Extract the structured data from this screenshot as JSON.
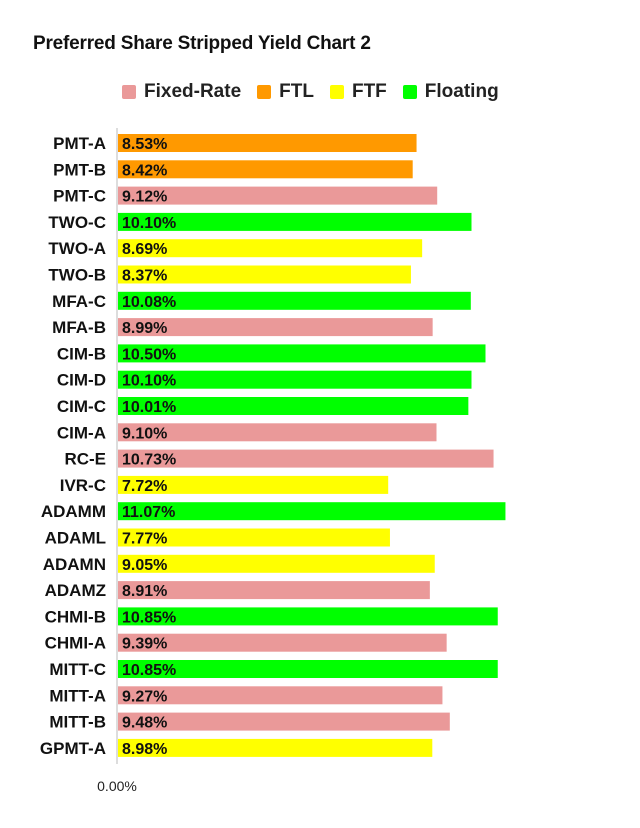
{
  "chart_data": {
    "type": "bar",
    "orientation": "horizontal",
    "title": "Preferred Share Stripped Yield Chart 2",
    "legend": {
      "position": "top",
      "entries": [
        {
          "name": "Fixed-Rate",
          "color": "#ea9999"
        },
        {
          "name": "FTL",
          "color": "#ff9900"
        },
        {
          "name": "FTF",
          "color": "#ffff00"
        },
        {
          "name": "Floating",
          "color": "#00ff00"
        }
      ]
    },
    "x_tick_labels": [
      "0.00%"
    ],
    "xlim": [
      0,
      12.3
    ],
    "grid": false,
    "categories": [
      "PMT-A",
      "PMT-B",
      "PMT-C",
      "TWO-C",
      "TWO-A",
      "TWO-B",
      "MFA-C",
      "MFA-B",
      "CIM-B",
      "CIM-D",
      "CIM-C",
      "CIM-A",
      "RC-E",
      "IVR-C",
      "ADAMM",
      "ADAML",
      "ADAMN",
      "ADAMZ",
      "CHMI-B",
      "CHMI-A",
      "MITT-C",
      "MITT-A",
      "MITT-B",
      "GPMT-A"
    ],
    "values": [
      8.53,
      8.42,
      9.12,
      10.1,
      8.69,
      8.37,
      10.08,
      8.99,
      10.5,
      10.1,
      10.01,
      9.1,
      10.73,
      7.72,
      11.07,
      7.77,
      9.05,
      8.91,
      10.85,
      9.39,
      10.85,
      9.27,
      9.48,
      8.98
    ],
    "value_labels": [
      "8.53%",
      "8.42%",
      "9.12%",
      "10.10%",
      "8.69%",
      "8.37%",
      "10.08%",
      "8.99%",
      "10.50%",
      "10.10%",
      "10.01%",
      "9.10%",
      "10.73%",
      "7.72%",
      "11.07%",
      "7.77%",
      "9.05%",
      "8.91%",
      "10.85%",
      "9.39%",
      "10.85%",
      "9.27%",
      "9.48%",
      "8.98%"
    ],
    "types": [
      "FTL",
      "FTL",
      "Fixed-Rate",
      "Floating",
      "FTF",
      "FTF",
      "Floating",
      "Fixed-Rate",
      "Floating",
      "Floating",
      "Floating",
      "Fixed-Rate",
      "Fixed-Rate",
      "FTF",
      "Floating",
      "FTF",
      "FTF",
      "Fixed-Rate",
      "Floating",
      "Fixed-Rate",
      "Floating",
      "Fixed-Rate",
      "Fixed-Rate",
      "FTF"
    ]
  }
}
